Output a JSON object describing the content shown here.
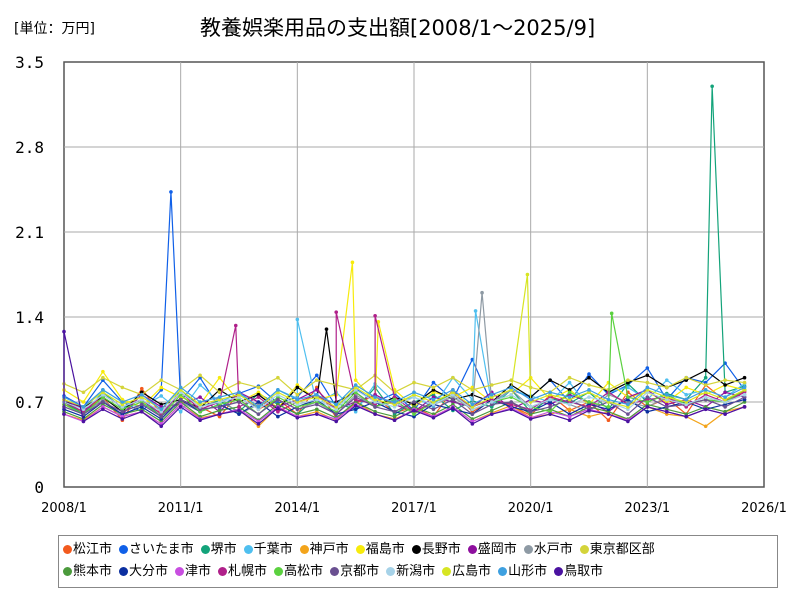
{
  "chart_data": {
    "type": "line",
    "title": "教養娯楽用品の支出額[2008/1～2025/9]",
    "unit_label": "[単位：万円]",
    "ylim": [
      0,
      3.5
    ],
    "yticks": [
      "0",
      "0.7",
      "1.4",
      "2.1",
      "2.8",
      "3.5"
    ],
    "xticks": [
      "2008/1",
      "2011/1",
      "2014/1",
      "2017/1",
      "2020/1",
      "2023/1",
      "2026/1"
    ],
    "x_start": "2008/1",
    "x_end": "2025/9",
    "sample_interval_months": 6,
    "grid": true,
    "legend_position": "bottom",
    "series": [
      {
        "name": "松江市",
        "color": "#f25a1e",
        "values": [
          0.68,
          0.62,
          0.74,
          0.55,
          0.81,
          0.6,
          0.7,
          0.66,
          0.58,
          0.77,
          0.64,
          0.72,
          0.6,
          0.82,
          0.57,
          0.69,
          0.75,
          0.61,
          0.66,
          0.58,
          0.8,
          0.62,
          0.71,
          0.67,
          0.59,
          0.76,
          0.63,
          0.7,
          0.55,
          0.78,
          0.66,
          0.73,
          0.6,
          0.84,
          0.71,
          0.79
        ]
      },
      {
        "name": "さいたま市",
        "color": "#1060e8",
        "values": [
          0.75,
          0.66,
          0.88,
          0.7,
          0.62,
          0.8,
          0.71,
          0.9,
          0.65,
          0.77,
          0.83,
          0.69,
          0.74,
          0.92,
          0.66,
          0.81,
          0.7,
          0.77,
          0.63,
          0.86,
          0.72,
          1.05,
          0.68,
          0.8,
          0.74,
          0.88,
          0.7,
          0.93,
          0.76,
          0.84,
          0.98,
          0.72,
          0.9,
          0.86,
          1.02,
          0.8
        ],
        "peaks": [
          {
            "date": "2010/10",
            "value": 2.43
          }
        ]
      },
      {
        "name": "堺市",
        "color": "#13a37a",
        "values": [
          0.7,
          0.6,
          0.78,
          0.65,
          0.72,
          0.58,
          0.8,
          0.66,
          0.71,
          0.62,
          0.77,
          0.68,
          0.6,
          0.74,
          0.69,
          0.64,
          0.82,
          0.6,
          0.7,
          0.76,
          0.63,
          0.71,
          0.66,
          0.8,
          0.62,
          0.73,
          0.69,
          0.78,
          0.64,
          0.85,
          0.7,
          0.77,
          0.72,
          0.9,
          0.78,
          0.83
        ],
        "peaks": [
          {
            "date": "2024/9",
            "value": 3.3
          }
        ]
      },
      {
        "name": "千葉市",
        "color": "#4fbfef",
        "values": [
          0.72,
          0.64,
          0.8,
          0.7,
          0.66,
          0.75,
          0.62,
          0.84,
          0.7,
          0.77,
          0.65,
          0.8,
          0.73,
          0.68,
          0.78,
          0.62,
          0.85,
          0.7,
          0.74,
          0.66,
          0.9,
          0.72,
          0.68,
          0.8,
          0.75,
          0.7,
          0.86,
          0.66,
          0.78,
          0.82,
          0.72,
          0.88,
          0.76,
          0.8,
          0.74,
          0.85
        ],
        "peaks": [
          {
            "date": "2014/1",
            "value": 1.38
          },
          {
            "date": "2018/8",
            "value": 1.45
          }
        ]
      },
      {
        "name": "神戸市",
        "color": "#f3a41b",
        "values": [
          0.6,
          0.55,
          0.66,
          0.58,
          0.62,
          0.52,
          0.68,
          0.57,
          0.6,
          0.64,
          0.5,
          0.66,
          0.58,
          0.62,
          0.55,
          0.7,
          0.6,
          0.56,
          0.63,
          0.58,
          0.66,
          0.54,
          0.61,
          0.67,
          0.57,
          0.6,
          0.64,
          0.58,
          0.62,
          0.55,
          0.66,
          0.6,
          0.58,
          0.5,
          0.62,
          0.66
        ]
      },
      {
        "name": "福島市",
        "color": "#f7eb0c",
        "values": [
          0.8,
          0.7,
          0.95,
          0.72,
          0.66,
          0.82,
          0.74,
          0.68,
          0.9,
          0.7,
          0.78,
          0.65,
          0.84,
          0.72,
          0.76,
          0.88,
          0.7,
          0.8,
          0.66,
          0.78,
          0.74,
          0.82,
          0.7,
          0.76,
          0.9,
          0.72,
          0.8,
          0.68,
          0.86,
          0.74,
          0.78,
          0.7,
          0.82,
          0.76,
          0.84,
          0.8
        ],
        "peaks": [
          {
            "date": "2015/6",
            "value": 1.85
          },
          {
            "date": "2016/2",
            "value": 1.36
          }
        ]
      },
      {
        "name": "長野市",
        "color": "#000000",
        "values": [
          0.7,
          0.66,
          0.74,
          0.62,
          0.78,
          0.68,
          0.72,
          0.65,
          0.8,
          0.7,
          0.76,
          0.64,
          0.82,
          0.72,
          0.7,
          0.78,
          0.66,
          0.74,
          0.68,
          0.8,
          0.72,
          0.76,
          0.7,
          0.84,
          0.74,
          0.88,
          0.8,
          0.9,
          0.78,
          0.86,
          0.92,
          0.82,
          0.88,
          0.96,
          0.84,
          0.9
        ],
        "peaks": [
          {
            "date": "2014/10",
            "value": 1.3
          }
        ]
      },
      {
        "name": "盛岡市",
        "color": "#8e0f9e",
        "values": [
          0.72,
          0.64,
          0.7,
          0.6,
          0.76,
          0.66,
          0.68,
          0.74,
          0.62,
          0.78,
          0.7,
          0.66,
          0.72,
          0.8,
          0.64,
          0.7,
          0.76,
          0.68,
          0.62,
          0.74,
          0.7,
          0.66,
          0.78,
          0.64,
          0.72,
          0.68,
          0.76,
          0.7,
          0.62,
          0.74,
          0.8,
          0.68,
          0.72,
          0.66,
          0.78,
          0.74
        ]
      },
      {
        "name": "水戸市",
        "color": "#8e9aa4",
        "values": [
          0.66,
          0.6,
          0.72,
          0.58,
          0.68,
          0.64,
          0.7,
          0.62,
          0.74,
          0.6,
          0.68,
          0.72,
          0.64,
          0.7,
          0.6,
          0.76,
          0.66,
          0.7,
          0.62,
          0.68,
          0.74,
          0.64,
          0.7,
          0.8,
          0.66,
          0.72,
          0.68,
          0.62,
          0.76,
          0.7,
          0.66,
          0.74,
          0.68,
          0.72,
          0.7,
          0.76
        ],
        "peaks": [
          {
            "date": "2018/10",
            "value": 1.6
          }
        ]
      },
      {
        "name": "東京都区部",
        "color": "#d4d43a",
        "values": [
          0.85,
          0.78,
          0.9,
          0.82,
          0.76,
          0.88,
          0.8,
          0.92,
          0.78,
          0.86,
          0.82,
          0.9,
          0.76,
          0.88,
          0.84,
          0.8,
          0.92,
          0.78,
          0.86,
          0.82,
          0.9,
          0.8,
          0.84,
          0.88,
          0.82,
          0.78,
          0.9,
          0.84,
          0.8,
          0.88,
          0.86,
          0.82,
          0.9,
          0.84,
          0.88,
          0.86
        ]
      },
      {
        "name": "熊本市",
        "color": "#4b9a3c",
        "values": [
          0.62,
          0.56,
          0.68,
          0.6,
          0.64,
          0.54,
          0.7,
          0.58,
          0.63,
          0.66,
          0.55,
          0.68,
          0.6,
          0.64,
          0.57,
          0.7,
          0.62,
          0.58,
          0.66,
          0.6,
          0.68,
          0.56,
          0.63,
          0.7,
          0.6,
          0.64,
          0.58,
          0.66,
          0.62,
          0.56,
          0.68,
          0.64,
          0.6,
          0.66,
          0.62,
          0.7
        ]
      },
      {
        "name": "大分市",
        "color": "#0b2fa0",
        "values": [
          0.64,
          0.58,
          0.7,
          0.6,
          0.66,
          0.56,
          0.72,
          0.62,
          0.68,
          0.6,
          0.7,
          0.58,
          0.66,
          0.72,
          0.6,
          0.64,
          0.7,
          0.62,
          0.58,
          0.68,
          0.64,
          0.6,
          0.72,
          0.66,
          0.62,
          0.7,
          0.6,
          0.68,
          0.64,
          0.72,
          0.62,
          0.66,
          0.7,
          0.64,
          0.68,
          0.72
        ]
      },
      {
        "name": "津市",
        "color": "#c84ee0",
        "values": [
          0.6,
          0.54,
          0.66,
          0.58,
          0.62,
          0.52,
          0.68,
          0.56,
          0.6,
          0.64,
          0.54,
          0.66,
          0.58,
          0.6,
          0.56,
          0.68,
          0.6,
          0.55,
          0.64,
          0.58,
          0.66,
          0.54,
          0.6,
          0.65,
          0.57,
          0.62,
          0.58,
          0.64,
          0.6,
          0.55,
          0.66,
          0.62,
          0.58,
          0.64,
          0.6,
          0.66
        ]
      },
      {
        "name": "札幌市",
        "color": "#b0208a",
        "values": [
          0.7,
          0.62,
          0.76,
          0.66,
          0.72,
          0.6,
          0.78,
          0.64,
          0.7,
          0.66,
          0.74,
          0.62,
          0.7,
          0.76,
          0.64,
          0.72,
          0.68,
          0.74,
          0.62,
          0.7,
          0.76,
          0.66,
          0.72,
          0.68,
          0.64,
          0.74,
          0.7,
          0.66,
          0.78,
          0.68,
          0.72,
          0.74,
          0.66,
          0.76,
          0.7,
          0.78
        ],
        "peaks": [
          {
            "date": "2012/6",
            "value": 1.33
          },
          {
            "date": "2015/1",
            "value": 1.44
          },
          {
            "date": "2016/1",
            "value": 1.41
          }
        ]
      },
      {
        "name": "高松市",
        "color": "#5bd13f",
        "values": [
          0.68,
          0.6,
          0.74,
          0.64,
          0.7,
          0.58,
          0.76,
          0.62,
          0.68,
          0.72,
          0.6,
          0.74,
          0.66,
          0.7,
          0.62,
          0.78,
          0.66,
          0.72,
          0.6,
          0.7,
          0.76,
          0.64,
          0.7,
          0.74,
          0.66,
          0.62,
          0.78,
          0.7,
          0.66,
          0.74,
          0.7,
          0.76,
          0.68,
          0.72,
          0.7,
          0.8
        ],
        "peaks": [
          {
            "date": "2022/2",
            "value": 1.43
          }
        ]
      },
      {
        "name": "京都市",
        "color": "#6a5091",
        "values": [
          0.66,
          0.6,
          0.7,
          0.62,
          0.68,
          0.58,
          0.72,
          0.64,
          0.66,
          0.7,
          0.6,
          0.72,
          0.64,
          0.68,
          0.6,
          0.74,
          0.66,
          0.62,
          0.7,
          0.64,
          0.72,
          0.6,
          0.68,
          0.7,
          0.62,
          0.66,
          0.72,
          0.64,
          0.7,
          0.6,
          0.74,
          0.66,
          0.68,
          0.72,
          0.66,
          0.74
        ]
      },
      {
        "name": "新潟市",
        "color": "#a6d2e8",
        "values": [
          0.7,
          0.64,
          0.76,
          0.66,
          0.72,
          0.62,
          0.78,
          0.66,
          0.7,
          0.74,
          0.64,
          0.76,
          0.68,
          0.72,
          0.64,
          0.8,
          0.7,
          0.66,
          0.74,
          0.68,
          0.76,
          0.64,
          0.7,
          0.76,
          0.66,
          0.72,
          0.68,
          0.74,
          0.7,
          0.64,
          0.78,
          0.72,
          0.68,
          0.74,
          0.7,
          0.76
        ]
      },
      {
        "name": "広島市",
        "color": "#d7e523",
        "values": [
          0.72,
          0.66,
          0.78,
          0.68,
          0.74,
          0.64,
          0.8,
          0.68,
          0.72,
          0.76,
          0.66,
          0.78,
          0.7,
          0.74,
          0.66,
          0.82,
          0.72,
          0.68,
          0.76,
          0.7,
          0.78,
          0.66,
          0.74,
          0.8,
          0.7,
          0.76,
          0.72,
          0.78,
          0.7,
          0.66,
          0.8,
          0.74,
          0.7,
          0.78,
          0.72,
          0.8
        ],
        "peaks": [
          {
            "date": "2019/12",
            "value": 1.75
          }
        ]
      },
      {
        "name": "山形市",
        "color": "#3ea0e0",
        "values": [
          0.74,
          0.66,
          0.8,
          0.7,
          0.76,
          0.64,
          0.82,
          0.7,
          0.74,
          0.78,
          0.66,
          0.8,
          0.72,
          0.76,
          0.68,
          0.84,
          0.74,
          0.7,
          0.78,
          0.72,
          0.8,
          0.68,
          0.76,
          0.82,
          0.72,
          0.78,
          0.74,
          0.8,
          0.72,
          0.68,
          0.82,
          0.76,
          0.72,
          0.8,
          0.74,
          0.82
        ]
      },
      {
        "name": "鳥取市",
        "color": "#4a12a0",
        "values": [
          0.6,
          0.54,
          0.64,
          0.56,
          0.62,
          0.5,
          0.66,
          0.55,
          0.6,
          0.63,
          0.52,
          0.65,
          0.57,
          0.6,
          0.54,
          0.67,
          0.6,
          0.55,
          0.63,
          0.57,
          0.65,
          0.52,
          0.6,
          0.64,
          0.56,
          0.6,
          0.55,
          0.63,
          0.6,
          0.54,
          0.66,
          0.62,
          0.58,
          0.64,
          0.6,
          0.66
        ],
        "peaks": [
          {
            "date": "2008/1",
            "value": 1.28
          }
        ]
      }
    ]
  }
}
